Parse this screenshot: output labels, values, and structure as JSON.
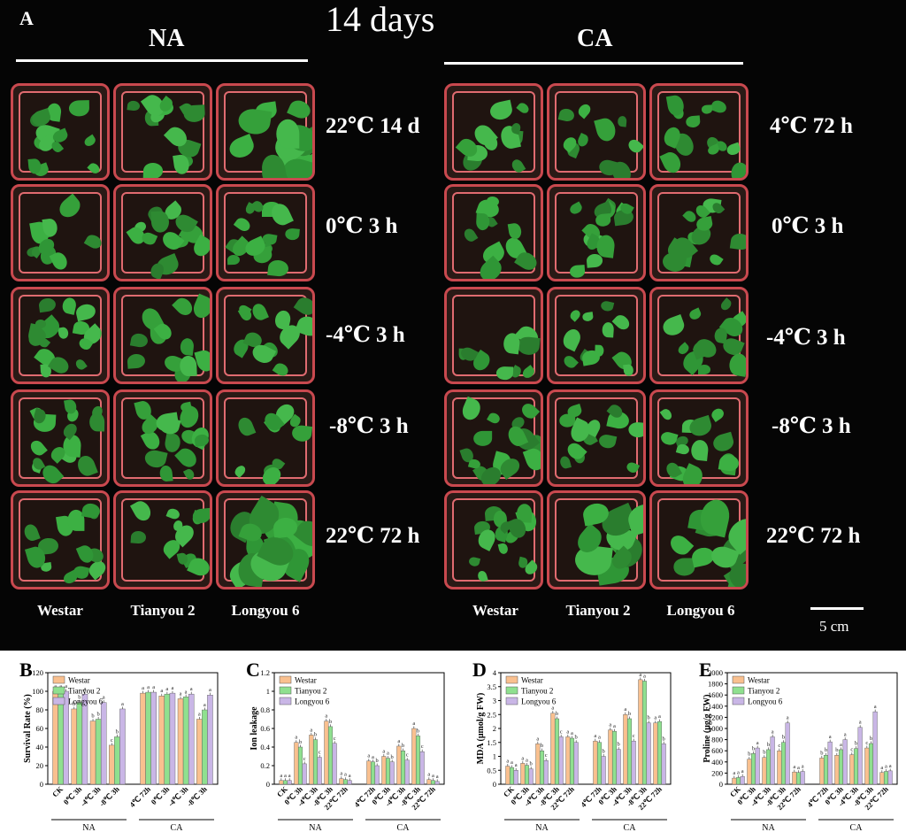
{
  "photo": {
    "panel_label": "A",
    "title": "14 days",
    "groups": [
      {
        "name": "NA",
        "row_labels": [
          "22℃ 14 d",
          "0℃ 3 h",
          "-4℃ 3 h",
          "-8℃ 3 h",
          "22℃ 72 h"
        ]
      },
      {
        "name": "CA",
        "row_labels": [
          "4℃ 72 h",
          "0℃ 3 h",
          "-4℃ 3 h",
          "-8℃ 3 h",
          "22℃ 72 h"
        ]
      }
    ],
    "varieties": [
      "Westar",
      "Tianyou 2",
      "Longyou 6"
    ],
    "scale_bar_label": "5 cm",
    "colors": {
      "background": "#050505",
      "pot_rim": "#c9494f",
      "leaf": "#2e8a32"
    }
  },
  "chart_data": [
    {
      "panel": "B",
      "type": "bar",
      "ylabel": "Survival Rate (%)",
      "ylim": [
        0,
        120
      ],
      "yticks": [
        0,
        20,
        40,
        60,
        80,
        100,
        120
      ],
      "groups": [
        "NA",
        "CA"
      ],
      "categories": [
        [
          "CK",
          "0℃ 3h",
          "-4℃ 3h",
          "-8℃ 3h"
        ],
        [
          "4℃ 72h",
          "0℃ 3h",
          "-4℃ 3h",
          "-8℃ 3h"
        ]
      ],
      "series": [
        {
          "name": "Westar",
          "color": "#f9c08f",
          "values": [
            [
              100,
              81,
              68,
              42
            ],
            [
              98,
              95,
              92,
              70
            ]
          ],
          "letters": [
            [
              "a",
              "b",
              "b",
              "c"
            ],
            [
              "a",
              "a",
              "a",
              "a"
            ]
          ]
        },
        {
          "name": "Tianyou 2",
          "color": "#8fe08f",
          "values": [
            [
              100,
              88,
              70,
              51
            ],
            [
              99,
              97,
              94,
              80
            ]
          ],
          "letters": [
            [
              "a",
              "b",
              "b",
              "b"
            ],
            [
              "a",
              "a",
              "a",
              "a"
            ]
          ]
        },
        {
          "name": "Longyou 6",
          "color": "#c9b6e6",
          "values": [
            [
              100,
              97,
              88,
              81
            ],
            [
              99,
              98,
              97,
              96
            ]
          ],
          "letters": [
            [
              "a",
              "a",
              "a",
              "a"
            ],
            [
              "a",
              "a",
              "a",
              "a"
            ]
          ]
        }
      ]
    },
    {
      "panel": "C",
      "type": "bar",
      "ylabel": "Ion leakage",
      "ylim": [
        0,
        1.2
      ],
      "yticks": [
        0,
        0.2,
        0.4,
        0.6,
        0.8,
        1.0,
        1.2
      ],
      "groups": [
        "NA",
        "CA"
      ],
      "categories": [
        [
          "CK",
          "0℃ 3h",
          "-4℃ 3h",
          "-8℃ 3h",
          "22℃ 72h"
        ],
        [
          "4℃ 72h",
          "0℃ 3h",
          "-4℃ 3h",
          "-8℃ 3h",
          "22℃ 72h"
        ]
      ],
      "series": [
        {
          "name": "Westar",
          "color": "#f9c08f",
          "values": [
            [
              0.04,
              0.45,
              0.53,
              0.68,
              0.06
            ],
            [
              0.25,
              0.3,
              0.41,
              0.6,
              0.05
            ]
          ],
          "letters": [
            [
              "a",
              "a",
              "a",
              "a",
              "a"
            ],
            [
              "a",
              "a",
              "a",
              "a",
              "a"
            ]
          ]
        },
        {
          "name": "Tianyou 2",
          "color": "#8fe08f",
          "values": [
            [
              0.04,
              0.4,
              0.48,
              0.62,
              0.05
            ],
            [
              0.24,
              0.28,
              0.36,
              0.52,
              0.04
            ]
          ],
          "letters": [
            [
              "a",
              "b",
              "b",
              "b",
              "a"
            ],
            [
              "a",
              "a",
              "b",
              "b",
              "a"
            ]
          ]
        },
        {
          "name": "Longyou 6",
          "color": "#c9b6e6",
          "values": [
            [
              0.04,
              0.22,
              0.29,
              0.44,
              0.04
            ],
            [
              0.2,
              0.24,
              0.26,
              0.35,
              0.03
            ]
          ],
          "letters": [
            [
              "a",
              "c",
              "c",
              "c",
              "a"
            ],
            [
              "b",
              "b",
              "c",
              "c",
              "a"
            ]
          ]
        }
      ]
    },
    {
      "panel": "D",
      "type": "bar",
      "ylabel": "MDA (μmol/g FW)",
      "ylim": [
        0,
        4.0
      ],
      "yticks": [
        0,
        0.5,
        1.0,
        1.5,
        2.0,
        2.5,
        3.0,
        3.5,
        4.0
      ],
      "groups": [
        "NA",
        "CA"
      ],
      "categories": [
        [
          "CK",
          "0℃ 3h",
          "-4℃ 3h",
          "-8℃ 3h",
          "22℃ 72h"
        ],
        [
          "4℃ 72h",
          "0℃ 3h",
          "-4℃ 3h",
          "-8℃ 3h",
          "22℃ 72h"
        ]
      ],
      "series": [
        {
          "name": "Westar",
          "color": "#f9c08f",
          "values": [
            [
              0.65,
              0.75,
              1.45,
              2.55,
              1.7
            ],
            [
              1.55,
              1.95,
              2.5,
              3.75,
              2.2
            ]
          ],
          "letters": [
            [
              "a",
              "a",
              "a",
              "a",
              "a"
            ],
            [
              "a",
              "a",
              "a",
              "a",
              "a"
            ]
          ]
        },
        {
          "name": "Tianyou 2",
          "color": "#8fe08f",
          "values": [
            [
              0.6,
              0.68,
              1.2,
              2.35,
              1.65
            ],
            [
              1.5,
              1.9,
              2.35,
              3.7,
              2.25
            ]
          ],
          "letters": [
            [
              "a",
              "a",
              "b",
              "b",
              "a"
            ],
            [
              "a",
              "a",
              "b",
              "a",
              "a"
            ]
          ]
        },
        {
          "name": "Longyou 6",
          "color": "#c9b6e6",
          "values": [
            [
              0.5,
              0.55,
              0.85,
              1.7,
              1.5
            ],
            [
              1.0,
              1.25,
              1.55,
              2.2,
              1.45
            ]
          ],
          "letters": [
            [
              "a",
              "b",
              "c",
              "c",
              "b"
            ],
            [
              "b",
              "b",
              "c",
              "b",
              "b"
            ]
          ]
        }
      ]
    },
    {
      "panel": "E",
      "type": "bar",
      "ylabel": "Proline (μg/g FW)",
      "ylim": [
        0,
        2000
      ],
      "yticks": [
        0,
        200,
        400,
        600,
        800,
        1000,
        1200,
        1400,
        1600,
        1800,
        2000
      ],
      "groups": [
        "NA",
        "CA"
      ],
      "categories": [
        [
          "CK",
          "0℃ 3h",
          "-4℃ 3h",
          "-8℃ 3h",
          "22℃ 72h"
        ],
        [
          "4℃ 72h",
          "0℃ 3h",
          "-4℃ 3h",
          "-8℃ 3h",
          "22℃ 72h"
        ]
      ],
      "series": [
        {
          "name": "Westar",
          "color": "#f9c08f",
          "values": [
            [
              110,
              450,
              480,
              600,
              220
            ],
            [
              470,
              520,
              530,
              650,
              210
            ]
          ],
          "letters": [
            [
              "a",
              "b",
              "b",
              "c",
              "a"
            ],
            [
              "b",
              "b",
              "c",
              "c",
              "a"
            ]
          ]
        },
        {
          "name": "Tianyou 2",
          "color": "#8fe08f",
          "values": [
            [
              120,
              550,
              620,
              750,
              210
            ],
            [
              520,
              620,
              640,
              730,
              230
            ]
          ],
          "letters": [
            [
              "a",
              "b",
              "b",
              "b",
              "a"
            ],
            [
              "b",
              "a",
              "b",
              "b",
              "a"
            ]
          ]
        },
        {
          "name": "Longyou 6",
          "color": "#c9b6e6",
          "values": [
            [
              140,
              650,
              850,
              1100,
              230
            ],
            [
              760,
              800,
              1020,
              1300,
              240
            ]
          ],
          "letters": [
            [
              "a",
              "a",
              "a",
              "a",
              "a"
            ],
            [
              "a",
              "a",
              "a",
              "a",
              "a"
            ]
          ]
        }
      ]
    }
  ]
}
